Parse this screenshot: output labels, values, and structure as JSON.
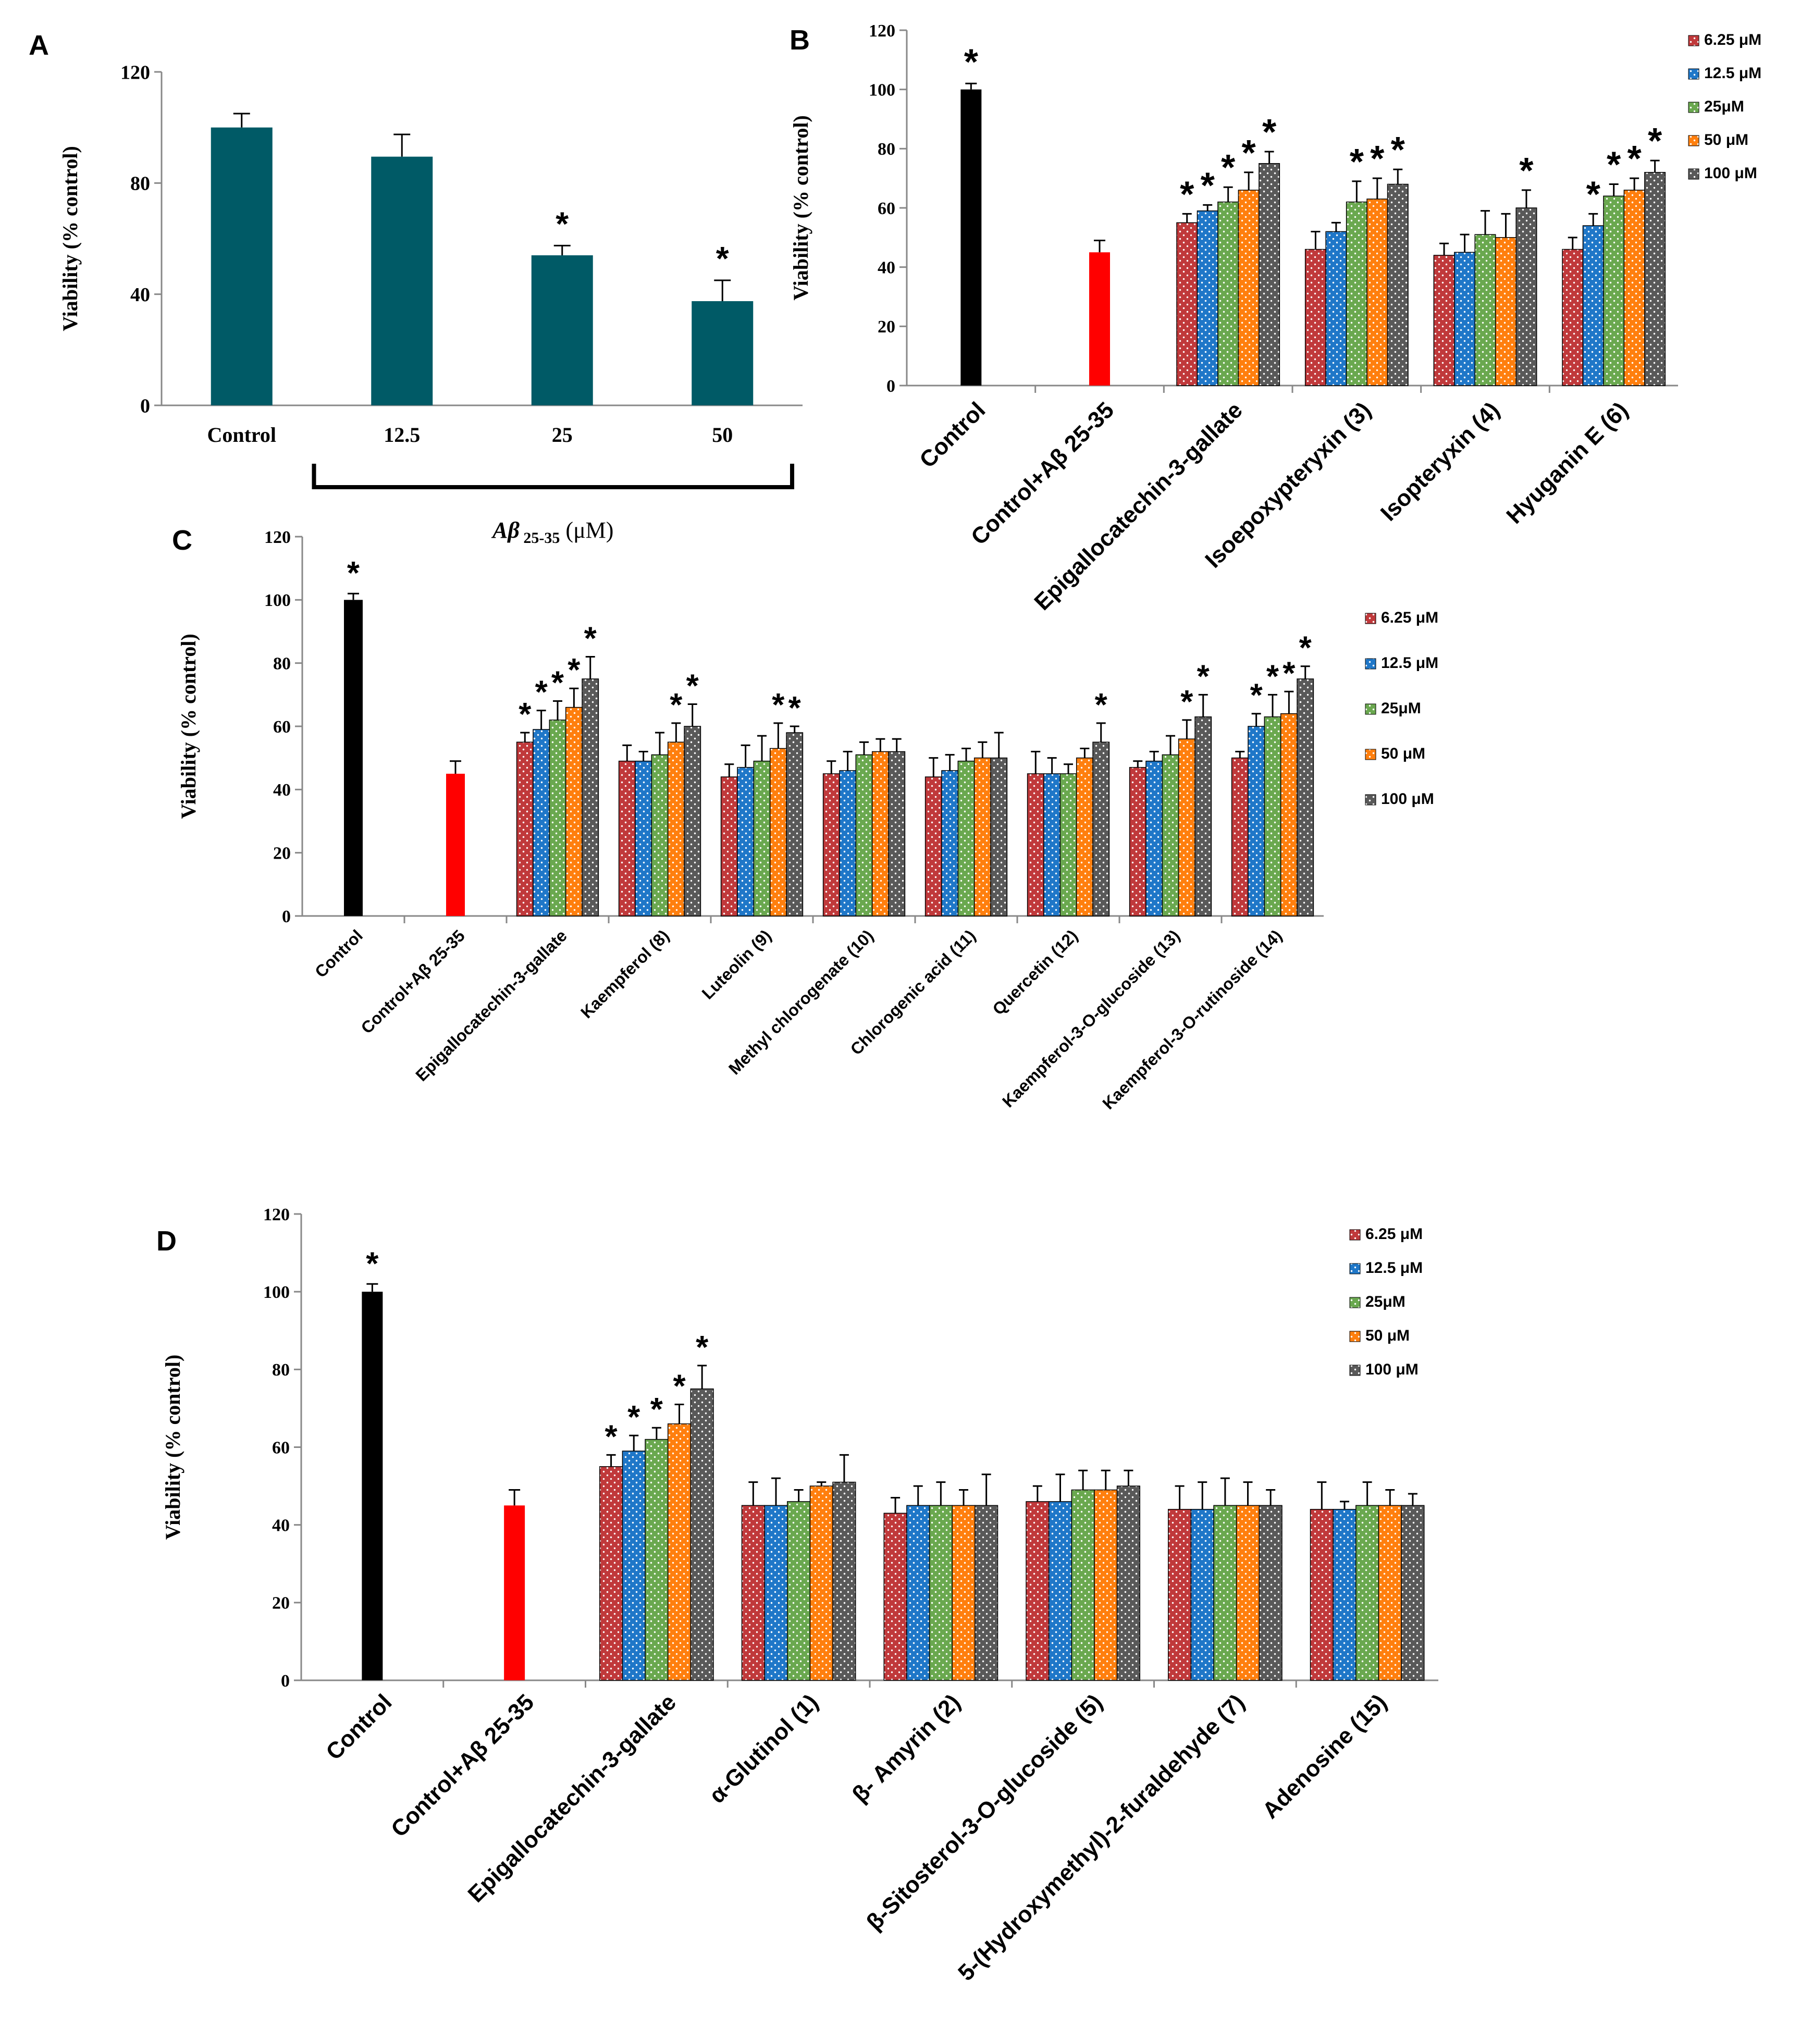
{
  "colors": {
    "teal": "#005a66",
    "control": "#000000",
    "abeta": "#ff0000",
    "s6_25": "#c0393b",
    "s12_5": "#1f77c8",
    "s25": "#6aa84f",
    "s50": "#ff7f0e",
    "s100": "#595959"
  },
  "chart_data": [
    {
      "panel": "A",
      "type": "bar",
      "ylabel": "Viability (% control)",
      "ylim": [
        0,
        120
      ],
      "yticks": [
        0,
        40,
        80,
        120
      ],
      "categories": [
        "Control",
        "12.5",
        "25",
        "50"
      ],
      "values": [
        100,
        89.5,
        54,
        37.5
      ],
      "errors": [
        5,
        8,
        3.5,
        7.5
      ],
      "significant": [
        false,
        false,
        true,
        true
      ],
      "bracket_label": "Aβ",
      "bracket_subscript": "25-35",
      "bracket_unit": "(μM)"
    },
    {
      "panel": "B",
      "type": "bar",
      "ylabel": "Viability (% control)",
      "ylim": [
        0,
        120
      ],
      "yticks": [
        0,
        20,
        40,
        60,
        80,
        100,
        120
      ],
      "legend": [
        "6.25 μM",
        "12.5 μM",
        "25μM",
        "50 μM",
        "100 μM"
      ],
      "control": {
        "label": "Control",
        "value": 100,
        "error": 2,
        "significant": true
      },
      "abeta": {
        "label": "Control+Aβ 25-35",
        "value": 45,
        "error": 4
      },
      "groups": [
        {
          "label": "Epigallocatechin-3-gallate",
          "values": [
            55,
            59,
            62,
            66,
            75
          ],
          "errors": [
            3,
            2,
            5,
            6,
            4
          ],
          "significant": [
            true,
            true,
            true,
            true,
            true
          ]
        },
        {
          "label": "Isoepoxypteryxin (3)",
          "values": [
            46,
            52,
            62,
            63,
            68
          ],
          "errors": [
            6,
            3,
            7,
            7,
            5
          ],
          "significant": [
            false,
            false,
            true,
            true,
            true
          ]
        },
        {
          "label": "Isopteryxin (4)",
          "values": [
            44,
            45,
            51,
            50,
            60
          ],
          "errors": [
            4,
            6,
            8,
            8,
            6
          ],
          "significant": [
            false,
            false,
            false,
            false,
            true
          ]
        },
        {
          "label": "Hyuganin E (6)",
          "values": [
            46,
            54,
            64,
            66,
            72
          ],
          "errors": [
            4,
            4,
            4,
            4,
            4
          ],
          "significant": [
            false,
            true,
            true,
            true,
            true
          ]
        }
      ]
    },
    {
      "panel": "C",
      "type": "bar",
      "ylabel": "Viability (% control)",
      "ylim": [
        0,
        120
      ],
      "yticks": [
        0,
        20,
        40,
        60,
        80,
        100,
        120
      ],
      "legend": [
        "6.25 μM",
        "12.5 μM",
        "25μM",
        "50 μM",
        "100 μM"
      ],
      "control": {
        "label": "Control",
        "value": 100,
        "error": 2,
        "significant": true
      },
      "abeta": {
        "label": "Control+Aβ 25-35",
        "value": 45,
        "error": 4
      },
      "groups": [
        {
          "label": "Epigallocatechin-3-gallate",
          "values": [
            55,
            59,
            62,
            66,
            75
          ],
          "errors": [
            3,
            6,
            6,
            6,
            7
          ],
          "significant": [
            true,
            true,
            true,
            true,
            true
          ]
        },
        {
          "label": "Kaempferol (8)",
          "values": [
            49,
            49,
            51,
            55,
            60
          ],
          "errors": [
            5,
            3,
            7,
            6,
            7
          ],
          "significant": [
            false,
            false,
            false,
            true,
            true
          ]
        },
        {
          "label": "Luteolin (9)",
          "values": [
            44,
            47,
            49,
            53,
            58
          ],
          "errors": [
            4,
            7,
            8,
            8,
            2
          ],
          "significant": [
            false,
            false,
            false,
            true,
            true
          ]
        },
        {
          "label": "Methyl chlorogenate (10)",
          "values": [
            45,
            46,
            51,
            52,
            52
          ],
          "errors": [
            4,
            6,
            4,
            4,
            4
          ],
          "significant": [
            false,
            false,
            false,
            false,
            false
          ]
        },
        {
          "label": "Chlorogenic acid (11)",
          "values": [
            44,
            46,
            49,
            50,
            50
          ],
          "errors": [
            6,
            5,
            4,
            5,
            8
          ],
          "significant": [
            false,
            false,
            false,
            false,
            false
          ]
        },
        {
          "label": "Quercetin (12)",
          "values": [
            45,
            45,
            45,
            50,
            55
          ],
          "errors": [
            7,
            5,
            3,
            3,
            6
          ],
          "significant": [
            false,
            false,
            false,
            false,
            true
          ]
        },
        {
          "label": "Kaempferol-3-O-glucoside (13)",
          "values": [
            47,
            49,
            51,
            56,
            63
          ],
          "errors": [
            2,
            3,
            6,
            6,
            7
          ],
          "significant": [
            false,
            false,
            false,
            true,
            true
          ]
        },
        {
          "label": "Kaempferol-3-O-rutinoside (14)",
          "values": [
            50,
            60,
            63,
            64,
            75
          ],
          "errors": [
            2,
            4,
            7,
            7,
            4
          ],
          "significant": [
            false,
            true,
            true,
            true,
            true
          ]
        }
      ]
    },
    {
      "panel": "D",
      "type": "bar",
      "ylabel": "Viability (% control)",
      "ylim": [
        0,
        120
      ],
      "yticks": [
        0,
        20,
        40,
        60,
        80,
        100,
        120
      ],
      "legend": [
        "6.25 μM",
        "12.5 μM",
        "25μM",
        "50 μM",
        "100 μM"
      ],
      "control": {
        "label": "Control",
        "value": 100,
        "error": 2,
        "significant": true
      },
      "abeta": {
        "label": "Control+Aβ 25-35",
        "value": 45,
        "error": 4
      },
      "groups": [
        {
          "label": "Epigallocatechin-3-gallate",
          "values": [
            55,
            59,
            62,
            66,
            75
          ],
          "errors": [
            3,
            4,
            3,
            5,
            6
          ],
          "significant": [
            true,
            true,
            true,
            true,
            true
          ]
        },
        {
          "label": "α-Glutinol (1)",
          "values": [
            45,
            45,
            46,
            50,
            51
          ],
          "errors": [
            6,
            7,
            3,
            1,
            7
          ],
          "significant": [
            false,
            false,
            false,
            false,
            false
          ]
        },
        {
          "label": "β- Amyrin (2)",
          "values": [
            43,
            45,
            45,
            45,
            45
          ],
          "errors": [
            4,
            5,
            6,
            4,
            8
          ],
          "significant": [
            false,
            false,
            false,
            false,
            false
          ]
        },
        {
          "label": "β-Sitosterol-3-O-glucoside (5)",
          "values": [
            46,
            46,
            49,
            49,
            50
          ],
          "errors": [
            4,
            7,
            5,
            5,
            4
          ],
          "significant": [
            false,
            false,
            false,
            false,
            false
          ]
        },
        {
          "label": "5-(Hydroxymethyl)-2-furaldehyde (7)",
          "values": [
            44,
            44,
            45,
            45,
            45
          ],
          "errors": [
            6,
            7,
            7,
            6,
            4
          ],
          "significant": [
            false,
            false,
            false,
            false,
            false
          ]
        },
        {
          "label": "Adenosine (15)",
          "values": [
            44,
            44,
            45,
            45,
            45
          ],
          "errors": [
            7,
            2,
            6,
            4,
            3
          ],
          "significant": [
            false,
            false,
            false,
            false,
            false
          ]
        }
      ]
    }
  ]
}
